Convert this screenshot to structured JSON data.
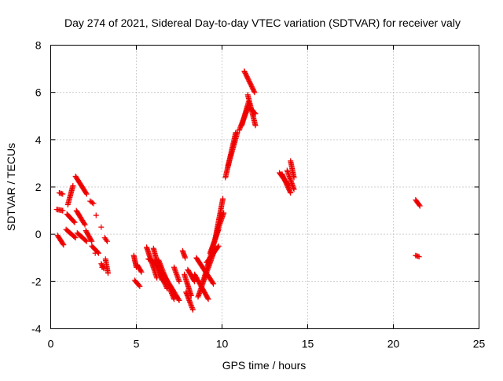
{
  "chart_data": {
    "type": "scatter",
    "title": "Day 274 of 2021, Sidereal Day-to-day VTEC variation (SDTVAR) for receiver valy",
    "xlabel": "GPS time / hours",
    "ylabel": "SDTVAR / TECUs",
    "xlim": [
      0,
      25
    ],
    "ylim": [
      -4,
      8
    ],
    "xticks": [
      0,
      5,
      10,
      15,
      20,
      25
    ],
    "xtick_labels": [
      "0",
      "5",
      "10",
      "15",
      "20",
      "25"
    ],
    "yticks": [
      -4,
      -2,
      0,
      2,
      4,
      6,
      8
    ],
    "ytick_labels": [
      "-4",
      "-2",
      "0",
      "2",
      "4",
      "6",
      "8"
    ],
    "grid": true,
    "marker": "plus",
    "color": "#ee0000",
    "segments": [
      {
        "x": [
          0.35,
          0.7
        ],
        "y": [
          1.05,
          1.0
        ]
      },
      {
        "x": [
          0.4,
          0.75
        ],
        "y": [
          -0.05,
          -0.45
        ]
      },
      {
        "x": [
          0.5,
          0.7
        ],
        "y": [
          1.75,
          1.7
        ]
      },
      {
        "x": [
          1.0,
          1.3
        ],
        "y": [
          1.25,
          2.05
        ]
      },
      {
        "x": [
          0.95,
          1.4
        ],
        "y": [
          0.85,
          0.5
        ]
      },
      {
        "x": [
          0.9,
          1.45
        ],
        "y": [
          0.2,
          -0.15
        ]
      },
      {
        "x": [
          1.45,
          2.1
        ],
        "y": [
          2.45,
          1.7
        ]
      },
      {
        "x": [
          1.5,
          2.0
        ],
        "y": [
          1.0,
          0.4
        ]
      },
      {
        "x": [
          1.55,
          2.1
        ],
        "y": [
          0.05,
          -0.3
        ]
      },
      {
        "x": [
          2.05,
          2.4
        ],
        "y": [
          0.15,
          -0.3
        ]
      },
      {
        "x": [
          2.3,
          2.5
        ],
        "y": [
          1.4,
          1.3
        ]
      },
      {
        "x": [
          2.4,
          2.8
        ],
        "y": [
          -0.5,
          -0.8
        ]
      },
      {
        "x": [
          2.95,
          3.1
        ],
        "y": [
          -1.25,
          -1.45
        ]
      },
      {
        "x": [
          3.15,
          3.3
        ],
        "y": [
          -0.15,
          -0.3
        ]
      },
      {
        "x": [
          3.2,
          3.35
        ],
        "y": [
          -1.05,
          -1.65
        ]
      },
      {
        "x": [
          4.85,
          5.0
        ],
        "y": [
          -0.9,
          -1.4
        ]
      },
      {
        "x": [
          4.9,
          5.2
        ],
        "y": [
          -1.95,
          -2.2
        ]
      },
      {
        "x": [
          5.05,
          5.3
        ],
        "y": [
          -1.3,
          -1.6
        ]
      },
      {
        "x": [
          5.6,
          6.2
        ],
        "y": [
          -0.55,
          -1.85
        ]
      },
      {
        "x": [
          5.7,
          6.35
        ],
        "y": [
          -1.05,
          -1.3
        ]
      },
      {
        "x": [
          6.0,
          6.5
        ],
        "y": [
          -0.6,
          -1.95
        ]
      },
      {
        "x": [
          6.1,
          6.8
        ],
        "y": [
          -1.2,
          -2.3
        ]
      },
      {
        "x": [
          6.3,
          7.2
        ],
        "y": [
          -1.1,
          -2.75
        ]
      },
      {
        "x": [
          6.5,
          7.5
        ],
        "y": [
          -1.6,
          -2.8
        ]
      },
      {
        "x": [
          7.2,
          7.5
        ],
        "y": [
          -1.4,
          -2.0
        ]
      },
      {
        "x": [
          7.7,
          7.85
        ],
        "y": [
          -0.7,
          -1.0
        ]
      },
      {
        "x": [
          7.8,
          8.2
        ],
        "y": [
          -1.7,
          -2.6
        ]
      },
      {
        "x": [
          7.9,
          8.3
        ],
        "y": [
          -2.45,
          -3.2
        ]
      },
      {
        "x": [
          8.0,
          8.4
        ],
        "y": [
          -1.5,
          -2.0
        ]
      },
      {
        "x": [
          8.4,
          9.2
        ],
        "y": [
          -1.7,
          -2.75
        ]
      },
      {
        "x": [
          8.5,
          9.5
        ],
        "y": [
          -1.0,
          -2.1
        ]
      },
      {
        "x": [
          8.6,
          9.6
        ],
        "y": [
          -2.65,
          -0.6
        ]
      },
      {
        "x": [
          8.9,
          9.8
        ],
        "y": [
          -2.0,
          0.3
        ]
      },
      {
        "x": [
          9.1,
          9.8
        ],
        "y": [
          -1.2,
          -0.5
        ]
      },
      {
        "x": [
          9.3,
          9.8
        ],
        "y": [
          -0.8,
          0.2
        ]
      },
      {
        "x": [
          9.6,
          10.05
        ],
        "y": [
          -0.2,
          1.5
        ]
      },
      {
        "x": [
          9.8,
          10.1
        ],
        "y": [
          0.3,
          0.9
        ]
      },
      {
        "x": [
          10.2,
          10.8
        ],
        "y": [
          2.4,
          4.3
        ]
      },
      {
        "x": [
          10.35,
          10.9
        ],
        "y": [
          2.9,
          4.3
        ]
      },
      {
        "x": [
          11.0,
          11.6
        ],
        "y": [
          4.4,
          5.5
        ]
      },
      {
        "x": [
          11.15,
          11.55
        ],
        "y": [
          4.6,
          5.6
        ]
      },
      {
        "x": [
          11.3,
          11.9
        ],
        "y": [
          6.9,
          6.0
        ]
      },
      {
        "x": [
          11.5,
          11.95
        ],
        "y": [
          5.9,
          4.6
        ]
      },
      {
        "x": [
          11.7,
          11.95
        ],
        "y": [
          5.3,
          5.1
        ]
      },
      {
        "x": [
          13.35,
          13.9
        ],
        "y": [
          2.6,
          2.05
        ]
      },
      {
        "x": [
          13.5,
          14.0
        ],
        "y": [
          2.55,
          1.75
        ]
      },
      {
        "x": [
          13.8,
          14.2
        ],
        "y": [
          2.7,
          1.9
        ]
      },
      {
        "x": [
          14.0,
          14.2
        ],
        "y": [
          3.1,
          2.4
        ]
      },
      {
        "x": [
          21.3,
          21.55
        ],
        "y": [
          1.45,
          1.2
        ]
      },
      {
        "x": [
          21.3,
          21.5
        ],
        "y": [
          -0.9,
          -0.95
        ]
      }
    ],
    "points": [
      {
        "x": 0.7,
        "y": 1.0
      },
      {
        "x": 2.65,
        "y": 0.8
      },
      {
        "x": 2.6,
        "y": -0.8
      },
      {
        "x": 2.95,
        "y": 0.3
      },
      {
        "x": 3.0,
        "y": -1.4
      }
    ]
  }
}
